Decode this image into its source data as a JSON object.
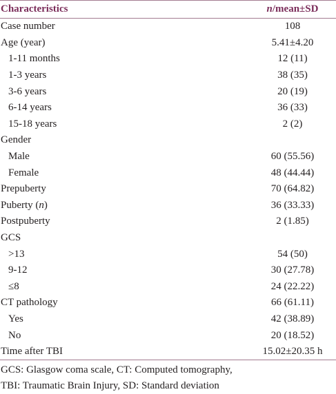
{
  "table": {
    "header": {
      "label": "Characteristics",
      "value_parts": [
        "n",
        "/mean±SD"
      ]
    },
    "rows": [
      {
        "label": "Case number",
        "value": "108"
      },
      {
        "label": "Age (year)",
        "value": "5.41±4.20",
        "items": [
          {
            "label": "1-11 months",
            "value": "12 (11)"
          },
          {
            "label": "1-3 years",
            "value": "38 (35)"
          },
          {
            "label": "3-6 years",
            "value": "20 (19)"
          },
          {
            "label": "6-14 years",
            "value": "36 (33)"
          },
          {
            "label": "15-18 years",
            "value": "2 (2)"
          }
        ]
      },
      {
        "label": "Gender",
        "items": [
          {
            "label": "Male",
            "value": "60 (55.56)"
          },
          {
            "label": "Female",
            "value": "48 (44.44)"
          }
        ]
      },
      {
        "label": "Prepuberty",
        "value": "70 (64.82)"
      },
      {
        "label_parts": [
          "Puberty (",
          "n",
          ")"
        ],
        "value": "36 (33.33)"
      },
      {
        "label": "Postpuberty",
        "value": "2 (1.85)"
      },
      {
        "label": "GCS",
        "items": [
          {
            "label": ">13",
            "value": "54 (50)"
          },
          {
            "label": "9-12",
            "value": "30 (27.78)"
          },
          {
            "label": "≤8",
            "value": "24 (22.22)"
          }
        ]
      },
      {
        "label": "CT pathology",
        "value": "66 (61.11)",
        "items": [
          {
            "label": "Yes",
            "value": "42 (38.89)"
          },
          {
            "label": "No",
            "value": "20 (18.52)"
          }
        ]
      },
      {
        "label": "Time after TBI",
        "value": "15.02±20.35 h"
      }
    ],
    "notes": [
      "GCS: Glasgow coma scale, CT: Computed tomography,",
      "TBI: Traumatic Brain Injury, SD: Standard deviation"
    ]
  }
}
